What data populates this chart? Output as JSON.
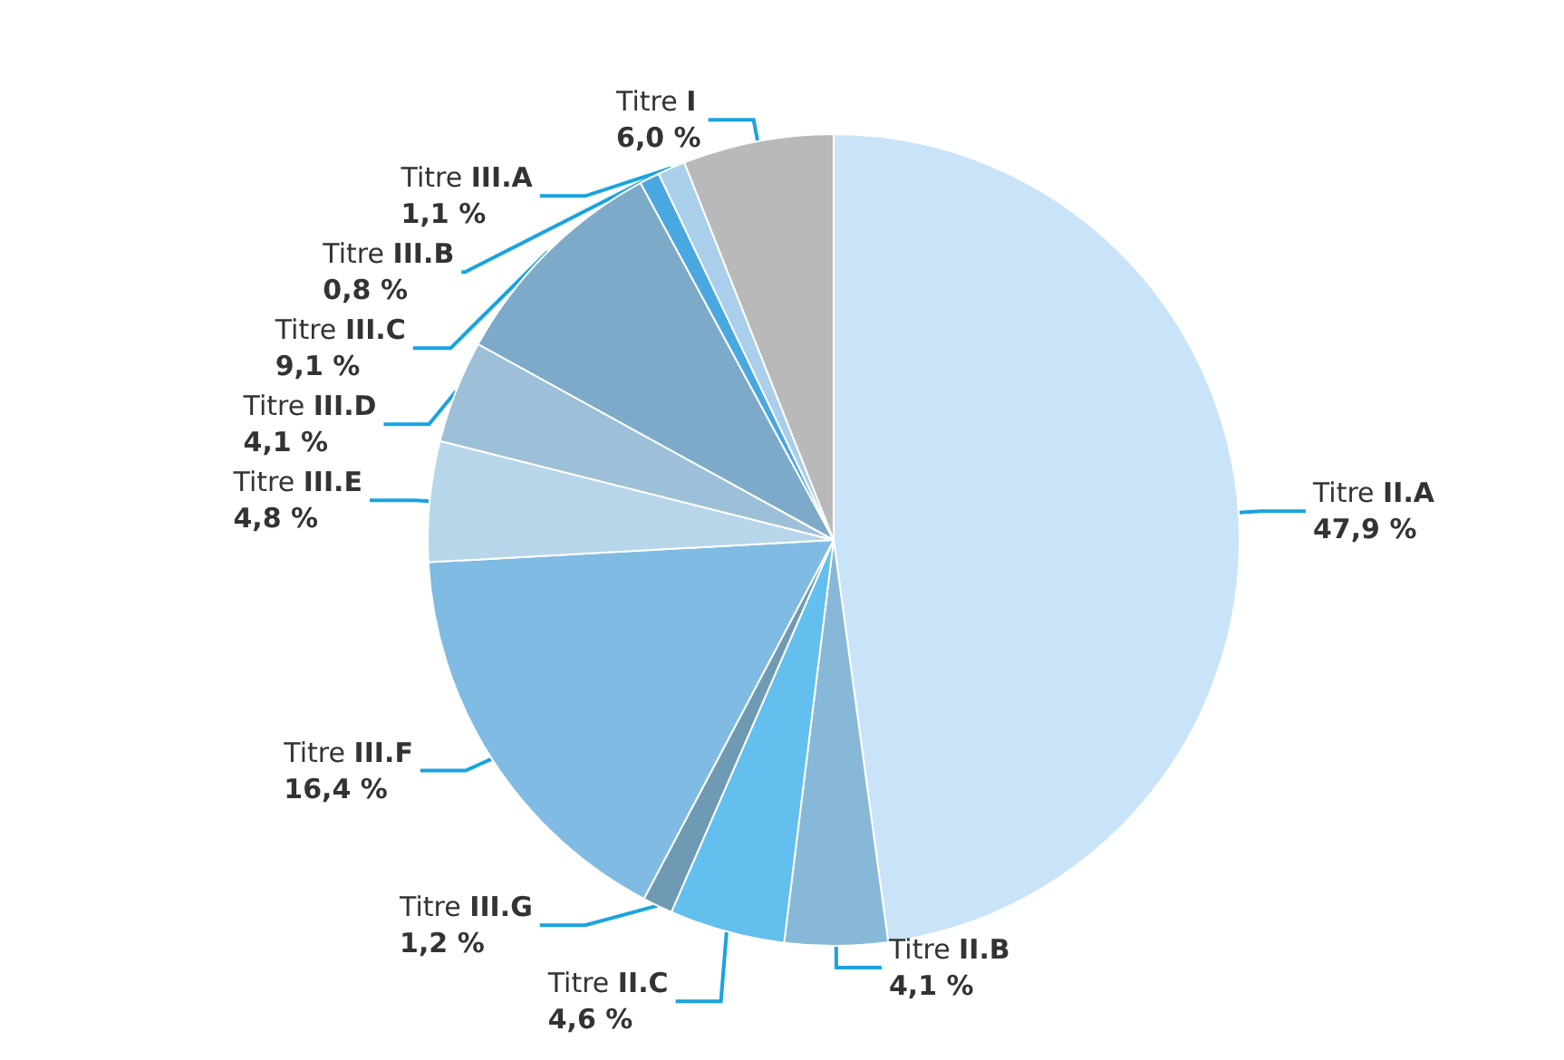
{
  "chart_data": {
    "type": "pie",
    "categories": [
      "Titre II.A",
      "Titre II.B",
      "Titre II.C",
      "Titre III.G",
      "Titre III.F",
      "Titre III.E",
      "Titre III.D",
      "Titre III.C",
      "Titre III.B",
      "Titre III.A",
      "Titre I"
    ],
    "values": [
      47.9,
      4.1,
      4.6,
      1.2,
      16.4,
      4.8,
      4.1,
      9.1,
      0.8,
      1.1,
      6.0
    ],
    "colors": [
      "#c9e4f8",
      "#88b8d8",
      "#62bfee",
      "#6f9ab3",
      "#7fbbe2",
      "#b8d6ea",
      "#9dbfd8",
      "#7daac8",
      "#4aa8e0",
      "#a9cfea",
      "#b9b9b9"
    ],
    "value_labels": [
      "47,9 %",
      "4,1 %",
      "4,6 %",
      "1,2 %",
      "16,4 %",
      "4,8 %",
      "4,1 %",
      "9,1 %",
      "0,8 %",
      "1,1 %",
      "6,0 %"
    ]
  }
}
